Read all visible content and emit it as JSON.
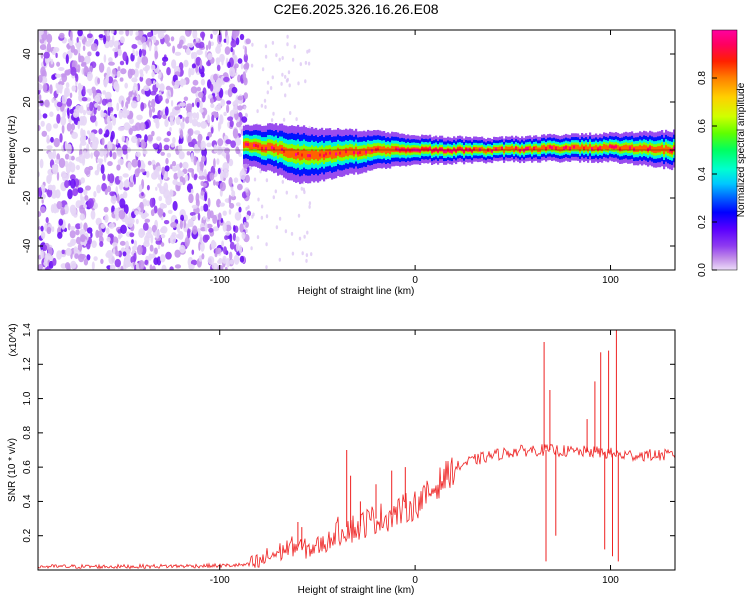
{
  "title": "C2E6.2025.326.16.26.E08",
  "chart_data": [
    {
      "type": "heatmap",
      "name": "spectrogram",
      "xlabel": "Height of straight line (km)",
      "ylabel": "Frequency (Hz)",
      "xlim": [
        -193,
        133
      ],
      "ylim": [
        -50,
        50
      ],
      "xticks": [
        -100,
        0,
        100
      ],
      "yticks": [
        -40,
        -20,
        0,
        20,
        40
      ],
      "colorbar": {
        "label": "Normalized spectral amplitude",
        "range": [
          0,
          1
        ],
        "ticks": [
          "0.0",
          "0.2",
          "0.4",
          "0.6",
          "0.8"
        ],
        "colors": [
          "#ecdcf8",
          "#c08be8",
          "#8f3cf0",
          "#5a00ff",
          "#0000ff",
          "#0060ff",
          "#00c8ff",
          "#00ffd0",
          "#00ff60",
          "#60ff00",
          "#d0ff00",
          "#ffd000",
          "#ff8000",
          "#ff2000",
          "#ff0060",
          "#ff00a0"
        ]
      },
      "noise_region_x": [
        -193,
        -88
      ],
      "signal_band": {
        "x_start": -88,
        "center_hz": [
          [
            -88,
            2
          ],
          [
            -75,
            1
          ],
          [
            -60,
            -2
          ],
          [
            -50,
            -2
          ],
          [
            -35,
            -1
          ],
          [
            -20,
            0
          ],
          [
            0,
            0
          ],
          [
            20,
            0
          ],
          [
            40,
            0
          ],
          [
            60,
            0.5
          ],
          [
            80,
            1
          ],
          [
            100,
            1
          ],
          [
            133,
            0
          ]
        ],
        "halfwidth_hz": [
          [
            -88,
            4
          ],
          [
            -60,
            6
          ],
          [
            -40,
            5
          ],
          [
            0,
            3
          ],
          [
            40,
            2.5
          ],
          [
            100,
            3
          ],
          [
            133,
            4
          ]
        ]
      }
    },
    {
      "type": "line",
      "name": "snr",
      "xlabel": "Height of straight line (km)",
      "ylabel": "SNR (10 * v/v)",
      "scale_label": "(x10^4)",
      "xlim": [
        -193,
        133
      ],
      "ylim": [
        0,
        1.4
      ],
      "xticks": [
        -100,
        0,
        100
      ],
      "yticks": [
        0.2,
        0.4,
        0.6,
        0.8,
        1.0,
        1.2,
        1.4
      ],
      "ytick_labels": [
        "0.2",
        "0.4",
        "0.6",
        "0.8",
        "1.0",
        "1.2",
        "1.4"
      ],
      "line_color": "#ee2222",
      "series": [
        {
          "name": "SNR",
          "x": [
            -193,
            -150,
            -100,
            -85,
            -80,
            -75,
            -70,
            -65,
            -62,
            -58,
            -55,
            -50,
            -45,
            -40,
            -35,
            -30,
            -25,
            -20,
            -15,
            -10,
            -5,
            0,
            5,
            10,
            15,
            20,
            25,
            30,
            40,
            50,
            60,
            70,
            80,
            90,
            100,
            105,
            110,
            120,
            133
          ],
          "y": [
            0.02,
            0.02,
            0.025,
            0.03,
            0.04,
            0.08,
            0.1,
            0.13,
            0.14,
            0.13,
            0.12,
            0.14,
            0.16,
            0.22,
            0.25,
            0.24,
            0.28,
            0.3,
            0.31,
            0.33,
            0.36,
            0.38,
            0.42,
            0.48,
            0.54,
            0.59,
            0.62,
            0.64,
            0.67,
            0.69,
            0.7,
            0.7,
            0.69,
            0.69,
            0.68,
            0.67,
            0.67,
            0.67,
            0.67
          ]
        }
      ],
      "spikes": [
        [
          -60,
          0.28
        ],
        [
          -58,
          0.25
        ],
        [
          -35,
          0.7
        ],
        [
          -33,
          0.55
        ],
        [
          -28,
          0.4
        ],
        [
          -20,
          0.5
        ],
        [
          -12,
          0.58
        ],
        [
          -5,
          0.6
        ],
        [
          66,
          1.33
        ],
        [
          67,
          0.05
        ],
        [
          69,
          1.05
        ],
        [
          72,
          0.2
        ],
        [
          88,
          0.88
        ],
        [
          92,
          1.1
        ],
        [
          95,
          1.27
        ],
        [
          97,
          0.12
        ],
        [
          99,
          1.28
        ],
        [
          101,
          0.08
        ],
        [
          103,
          1.4
        ],
        [
          104,
          0.05
        ]
      ]
    }
  ]
}
